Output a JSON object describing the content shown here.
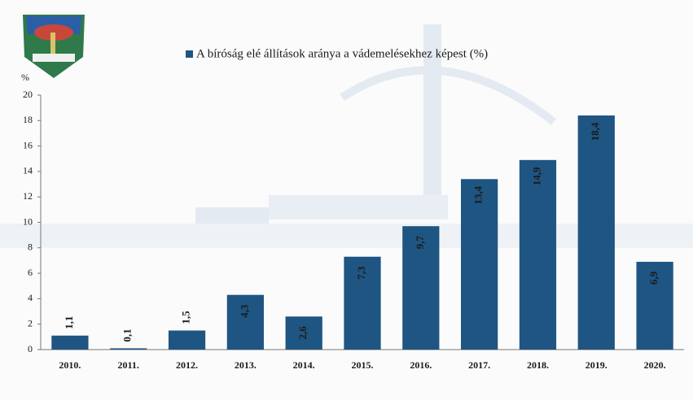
{
  "chart_data": {
    "type": "bar",
    "y_label": "%",
    "categories": [
      "2010.",
      "2011.",
      "2012.",
      "2013.",
      "2014.",
      "2015.",
      "2016.",
      "2017.",
      "2018.",
      "2019.",
      "2020."
    ],
    "series": [
      {
        "name": "A bíróság elé állítások aránya a vádemelésekhez képest (%)",
        "color": "#1f5582",
        "values": [
          1.1,
          0.1,
          1.5,
          4.3,
          2.6,
          7.3,
          9.7,
          13.4,
          14.9,
          18.4,
          6.9
        ],
        "value_labels": [
          "1,1",
          "0,1",
          "1,5",
          "4,3",
          "2,6",
          "7,3",
          "9,7",
          "13,4",
          "14,9",
          "18,4",
          "6,9"
        ]
      }
    ],
    "ylim": [
      0,
      20
    ],
    "yticks": [
      0,
      2,
      4,
      6,
      8,
      10,
      12,
      14,
      16,
      18,
      20
    ]
  }
}
